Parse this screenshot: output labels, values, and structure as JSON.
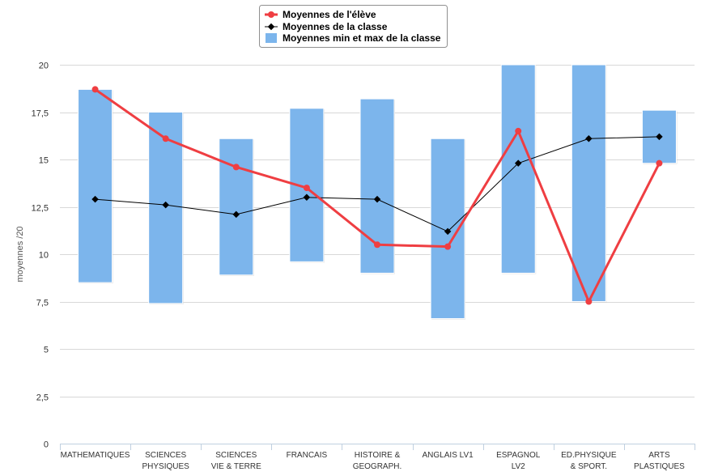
{
  "chart_data": {
    "type": "bar",
    "ylabel": "moyennes /20",
    "ylim": [
      0,
      20
    ],
    "yticks": [
      {
        "value": 0,
        "label": "0"
      },
      {
        "value": 2.5,
        "label": "2,5"
      },
      {
        "value": 5,
        "label": "5"
      },
      {
        "value": 7.5,
        "label": "7,5"
      },
      {
        "value": 10,
        "label": "10"
      },
      {
        "value": 12.5,
        "label": "12,5"
      },
      {
        "value": 15,
        "label": "15"
      },
      {
        "value": 17.5,
        "label": "17,5"
      },
      {
        "value": 20,
        "label": "20"
      }
    ],
    "grid": true,
    "legend_position": "top-center",
    "categories": [
      [
        "MATHEMATIQUES"
      ],
      [
        "SCIENCES",
        "PHYSIQUES"
      ],
      [
        "SCIENCES",
        "VIE & TERRE"
      ],
      [
        "FRANCAIS"
      ],
      [
        "HISTOIRE &",
        "GEOGRAPH."
      ],
      [
        "ANGLAIS LV1"
      ],
      [
        "ESPAGNOL",
        "LV2"
      ],
      [
        "ED.PHYSIQUE",
        "& SPORT."
      ],
      [
        "ARTS",
        "PLASTIQUES"
      ]
    ],
    "series": [
      {
        "name": "Moyennes de l'élève",
        "type": "line",
        "color": "#ef3e42",
        "values": [
          18.7,
          16.1,
          14.6,
          13.5,
          10.5,
          10.4,
          16.5,
          7.5,
          14.8
        ]
      },
      {
        "name": "Moyennes de la classe",
        "type": "line",
        "color": "#000000",
        "values": [
          12.9,
          12.6,
          12.1,
          13.0,
          12.9,
          11.2,
          14.8,
          16.1,
          16.2
        ]
      },
      {
        "name": "Moyennes min et max de la classe",
        "type": "range-bar",
        "color": "#7cb5ec",
        "min": [
          8.5,
          7.4,
          8.9,
          9.6,
          9.0,
          6.6,
          9.0,
          7.5,
          14.8
        ],
        "max": [
          18.7,
          17.5,
          16.1,
          17.7,
          18.2,
          16.1,
          20.0,
          20.0,
          17.6
        ]
      }
    ]
  }
}
